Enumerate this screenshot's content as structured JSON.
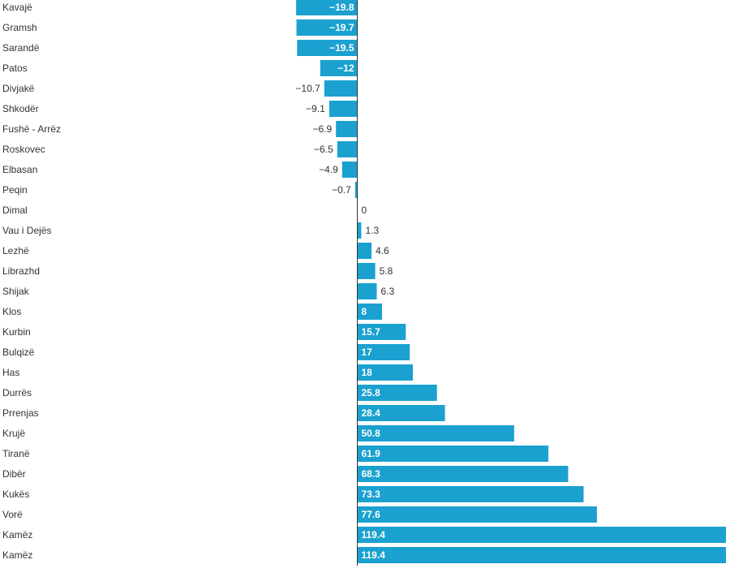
{
  "chart_data": {
    "type": "bar",
    "orientation": "horizontal",
    "title": "",
    "xlabel": "",
    "ylabel": "",
    "grid": false,
    "legend": "none",
    "bar_color": "#1ba1cf",
    "label_color_inside": "#ffffff",
    "label_color_outside": "#333333",
    "axis_color": "#333333",
    "categories": [
      "Kavajë",
      "Gramsh",
      "Sarandë",
      "Patos",
      "Divjakë",
      "Shkodër",
      "Fushë - Arrëz",
      "Roskovec",
      "Elbasan",
      "Peqin",
      "Dimal",
      "Vau i Dejës",
      "Lezhë",
      "Librazhd",
      "Shijak",
      "Klos",
      "Kurbin",
      "Bulqizë",
      "Has",
      "Durrës",
      "Prrenjas",
      "Krujë",
      "Tiranë",
      "Dibër",
      "Kukës",
      "Vorë",
      "Kamëz",
      "Kamëz"
    ],
    "values": [
      -19.8,
      -19.7,
      -19.5,
      -12,
      -10.7,
      -9.1,
      -6.9,
      -6.5,
      -4.9,
      -0.7,
      0,
      1.3,
      4.6,
      5.8,
      6.3,
      8,
      15.7,
      17,
      18,
      25.8,
      28.4,
      50.8,
      61.9,
      68.3,
      73.3,
      77.6,
      119.4,
      119.4
    ],
    "value_labels": [
      "−19.8",
      "−19.7",
      "−19.5",
      "−12",
      "−10.7",
      "−9.1",
      "−6.9",
      "−6.5",
      "−4.9",
      "−0.7",
      "0",
      "1.3",
      "4.6",
      "5.8",
      "6.3",
      "8",
      "15.7",
      "17",
      "18",
      "25.8",
      "28.4",
      "50.8",
      "61.9",
      "68.3",
      "73.3",
      "77.6",
      "119.4",
      "119.4"
    ],
    "xlim": [
      -19.8,
      119.4
    ]
  }
}
